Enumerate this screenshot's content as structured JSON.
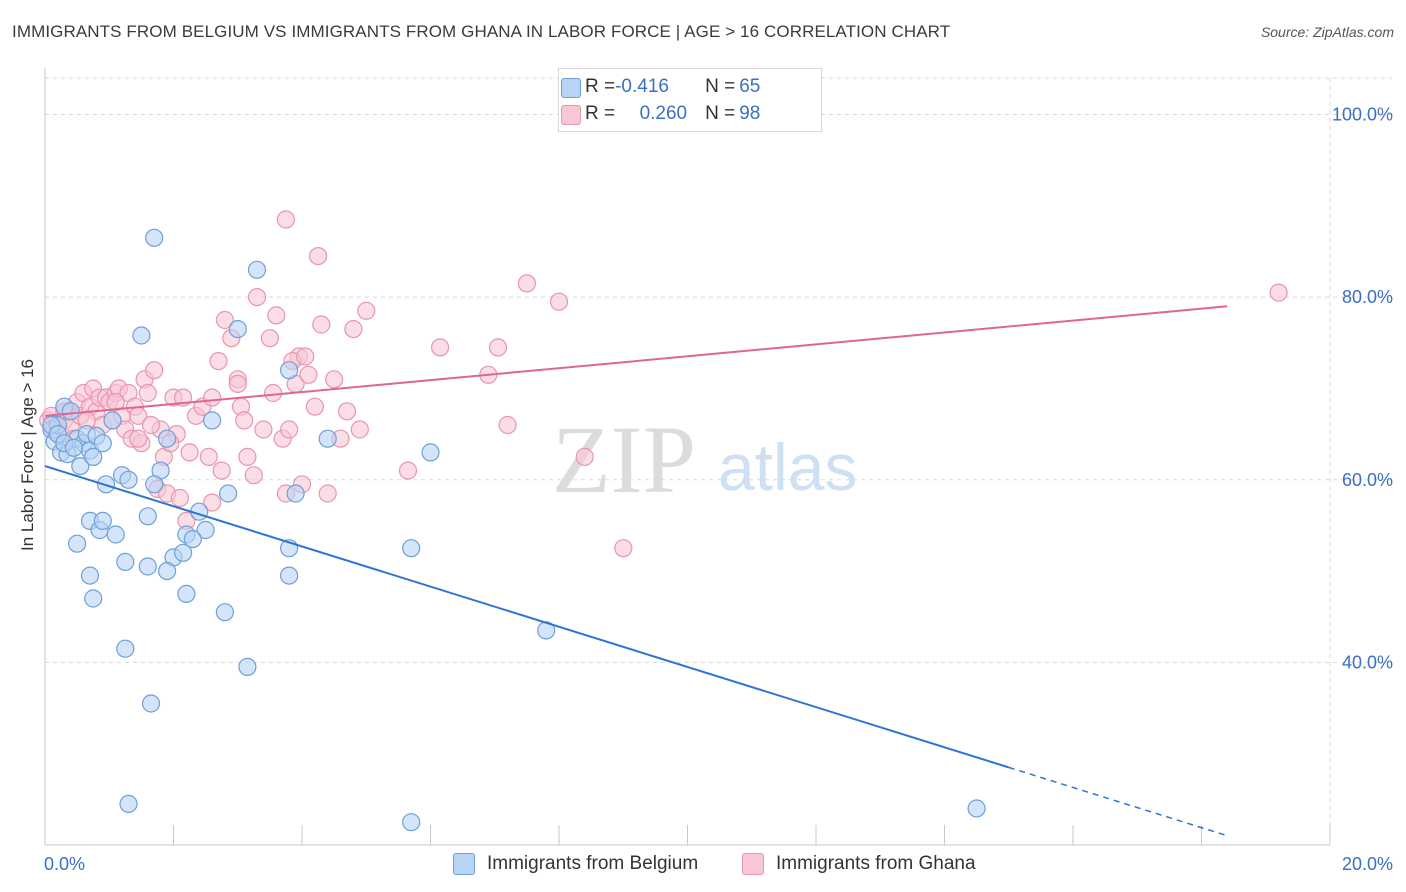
{
  "header": {
    "title": "IMMIGRANTS FROM BELGIUM VS IMMIGRANTS FROM GHANA IN LABOR FORCE | AGE > 16 CORRELATION CHART",
    "source": "Source: ZipAtlas.com"
  },
  "legend_top": {
    "rows": [
      {
        "r_label": "R = ",
        "r_value": "-0.416",
        "n_label": "N = ",
        "n_value": "65"
      },
      {
        "r_label": "R = ",
        "r_value": "0.260",
        "n_label": "N = ",
        "n_value": "98"
      }
    ]
  },
  "watermark": {
    "zip": "ZIP",
    "atlas": "atlas"
  },
  "colors": {
    "belgium_fill": "#b8d4f5",
    "belgium_stroke": "#6e9fd8",
    "belgium_line": "#2f74d0",
    "ghana_fill": "#f9c6d6",
    "ghana_stroke": "#e895b0",
    "ghana_line": "#e0668f",
    "tick_text": "#3a6fc4",
    "grid": "#d8d8d8"
  },
  "chart_data": {
    "type": "scatter",
    "title": "IMMIGRANTS FROM BELGIUM VS IMMIGRANTS FROM GHANA IN LABOR FORCE | AGE > 16 CORRELATION CHART",
    "xlabel": "",
    "ylabel": "In Labor Force | Age > 16",
    "xlim": [
      0,
      20
    ],
    "ylim": [
      20,
      104
    ],
    "x_tick_labels": [
      "0.0%",
      "20.0%"
    ],
    "y_ticks": [
      40,
      60,
      80,
      100
    ],
    "y_tick_labels": [
      "40.0%",
      "60.0%",
      "80.0%",
      "100.0%"
    ],
    "grid": true,
    "legend_position": "bottom",
    "series": [
      {
        "name": "Immigrants from Belgium",
        "r": -0.416,
        "n": 65,
        "trend": {
          "x0": 0.0,
          "y0": 61.5,
          "x1": 15.0,
          "y1": 28.5,
          "dash_to_x": 18.4
        },
        "points": [
          [
            0.1,
            65.5
          ],
          [
            0.15,
            64.2
          ],
          [
            0.2,
            66.0
          ],
          [
            0.25,
            63.0
          ],
          [
            0.3,
            68.0
          ],
          [
            0.4,
            67.5
          ],
          [
            0.5,
            64.5
          ],
          [
            0.55,
            61.5
          ],
          [
            0.35,
            62.8
          ],
          [
            0.6,
            64.0
          ],
          [
            0.65,
            65.0
          ],
          [
            0.7,
            63.2
          ],
          [
            0.75,
            62.5
          ],
          [
            0.8,
            64.8
          ],
          [
            0.9,
            64.0
          ],
          [
            0.95,
            59.5
          ],
          [
            1.05,
            66.5
          ],
          [
            1.2,
            60.5
          ],
          [
            1.3,
            60.0
          ],
          [
            1.5,
            75.8
          ],
          [
            1.7,
            86.5
          ],
          [
            1.8,
            61.0
          ],
          [
            1.9,
            64.5
          ],
          [
            2.0,
            51.5
          ],
          [
            2.15,
            52.0
          ],
          [
            2.2,
            54.0
          ],
          [
            2.4,
            56.5
          ],
          [
            2.5,
            54.5
          ],
          [
            2.6,
            66.5
          ],
          [
            2.85,
            58.5
          ],
          [
            3.0,
            76.5
          ],
          [
            3.3,
            83.0
          ],
          [
            3.8,
            72.0
          ],
          [
            3.9,
            58.5
          ],
          [
            4.4,
            64.5
          ],
          [
            0.5,
            53.0
          ],
          [
            0.7,
            49.5
          ],
          [
            0.75,
            47.0
          ],
          [
            0.7,
            55.5
          ],
          [
            0.85,
            54.5
          ],
          [
            0.9,
            55.5
          ],
          [
            1.1,
            54.0
          ],
          [
            1.25,
            51.0
          ],
          [
            1.6,
            56.0
          ],
          [
            1.6,
            50.5
          ],
          [
            1.7,
            59.5
          ],
          [
            1.9,
            50.0
          ],
          [
            2.2,
            47.5
          ],
          [
            2.3,
            53.5
          ],
          [
            2.8,
            45.5
          ],
          [
            1.25,
            41.5
          ],
          [
            1.65,
            35.5
          ],
          [
            3.15,
            39.5
          ],
          [
            3.8,
            52.5
          ],
          [
            3.8,
            49.5
          ],
          [
            5.7,
            52.5
          ],
          [
            6.0,
            63.0
          ],
          [
            7.8,
            43.5
          ],
          [
            1.3,
            24.5
          ],
          [
            5.7,
            22.5
          ],
          [
            14.5,
            24.0
          ],
          [
            0.1,
            66.0
          ],
          [
            0.2,
            65.0
          ],
          [
            0.3,
            64.0
          ],
          [
            0.45,
            63.5
          ]
        ]
      },
      {
        "name": "Immigrants from Ghana",
        "r": 0.26,
        "n": 98,
        "trend": {
          "x0": 0.0,
          "y0": 67.0,
          "x1": 18.4,
          "y1": 79.0
        },
        "points": [
          [
            0.05,
            66.5
          ],
          [
            0.1,
            67.0
          ],
          [
            0.15,
            65.5
          ],
          [
            0.2,
            66.0
          ],
          [
            0.25,
            65.0
          ],
          [
            0.3,
            66.5
          ],
          [
            0.35,
            67.5
          ],
          [
            0.4,
            66.0
          ],
          [
            0.5,
            68.5
          ],
          [
            0.55,
            67.0
          ],
          [
            0.6,
            69.5
          ],
          [
            0.7,
            68.0
          ],
          [
            0.75,
            70.0
          ],
          [
            0.8,
            67.5
          ],
          [
            0.85,
            69.0
          ],
          [
            0.9,
            66.0
          ],
          [
            0.95,
            69.0
          ],
          [
            1.0,
            68.5
          ],
          [
            1.05,
            66.5
          ],
          [
            1.1,
            69.5
          ],
          [
            1.15,
            70.0
          ],
          [
            1.2,
            67.0
          ],
          [
            1.25,
            65.5
          ],
          [
            1.3,
            69.5
          ],
          [
            1.35,
            64.5
          ],
          [
            1.4,
            68.0
          ],
          [
            1.45,
            67.0
          ],
          [
            1.5,
            64.0
          ],
          [
            1.55,
            71.0
          ],
          [
            1.6,
            69.5
          ],
          [
            1.7,
            72.0
          ],
          [
            1.75,
            59.0
          ],
          [
            1.8,
            65.5
          ],
          [
            1.85,
            62.5
          ],
          [
            1.9,
            58.5
          ],
          [
            2.0,
            69.0
          ],
          [
            2.05,
            65.0
          ],
          [
            2.1,
            58.0
          ],
          [
            2.2,
            55.5
          ],
          [
            2.25,
            63.0
          ],
          [
            2.35,
            67.0
          ],
          [
            2.45,
            68.0
          ],
          [
            2.55,
            62.5
          ],
          [
            2.6,
            57.5
          ],
          [
            2.7,
            73.0
          ],
          [
            2.8,
            77.5
          ],
          [
            2.9,
            75.5
          ],
          [
            3.0,
            71.0
          ],
          [
            3.05,
            68.0
          ],
          [
            3.1,
            66.5
          ],
          [
            3.15,
            62.5
          ],
          [
            3.25,
            60.5
          ],
          [
            3.3,
            80.0
          ],
          [
            3.4,
            65.5
          ],
          [
            3.5,
            75.5
          ],
          [
            3.55,
            69.5
          ],
          [
            3.6,
            78.0
          ],
          [
            3.7,
            64.5
          ],
          [
            3.75,
            58.5
          ],
          [
            3.8,
            65.5
          ],
          [
            3.9,
            70.5
          ],
          [
            3.95,
            73.5
          ],
          [
            4.0,
            59.5
          ],
          [
            4.1,
            71.5
          ],
          [
            4.2,
            68.0
          ],
          [
            4.3,
            77.0
          ],
          [
            4.4,
            58.5
          ],
          [
            4.5,
            71.0
          ],
          [
            4.6,
            64.5
          ],
          [
            4.7,
            67.5
          ],
          [
            4.8,
            76.5
          ],
          [
            4.9,
            65.5
          ],
          [
            5.0,
            78.5
          ],
          [
            3.75,
            88.5
          ],
          [
            4.25,
            84.5
          ],
          [
            5.65,
            61.0
          ],
          [
            6.15,
            74.5
          ],
          [
            6.9,
            71.5
          ],
          [
            7.05,
            74.5
          ],
          [
            7.2,
            66.0
          ],
          [
            7.5,
            81.5
          ],
          [
            8.0,
            79.5
          ],
          [
            8.4,
            62.5
          ],
          [
            9.0,
            52.5
          ],
          [
            19.2,
            80.5
          ],
          [
            0.65,
            66.5
          ],
          [
            0.45,
            64.5
          ],
          [
            1.65,
            66.0
          ],
          [
            2.6,
            69.0
          ],
          [
            2.15,
            69.0
          ],
          [
            3.0,
            70.5
          ],
          [
            3.85,
            73.0
          ],
          [
            4.05,
            73.5
          ],
          [
            2.75,
            61.0
          ],
          [
            1.95,
            64.0
          ],
          [
            0.3,
            67.5
          ],
          [
            1.1,
            68.5
          ],
          [
            1.45,
            64.5
          ]
        ]
      }
    ]
  },
  "bottom_legend": {
    "belgium_label": "Immigrants from Belgium",
    "ghana_label": "Immigrants from Ghana"
  }
}
